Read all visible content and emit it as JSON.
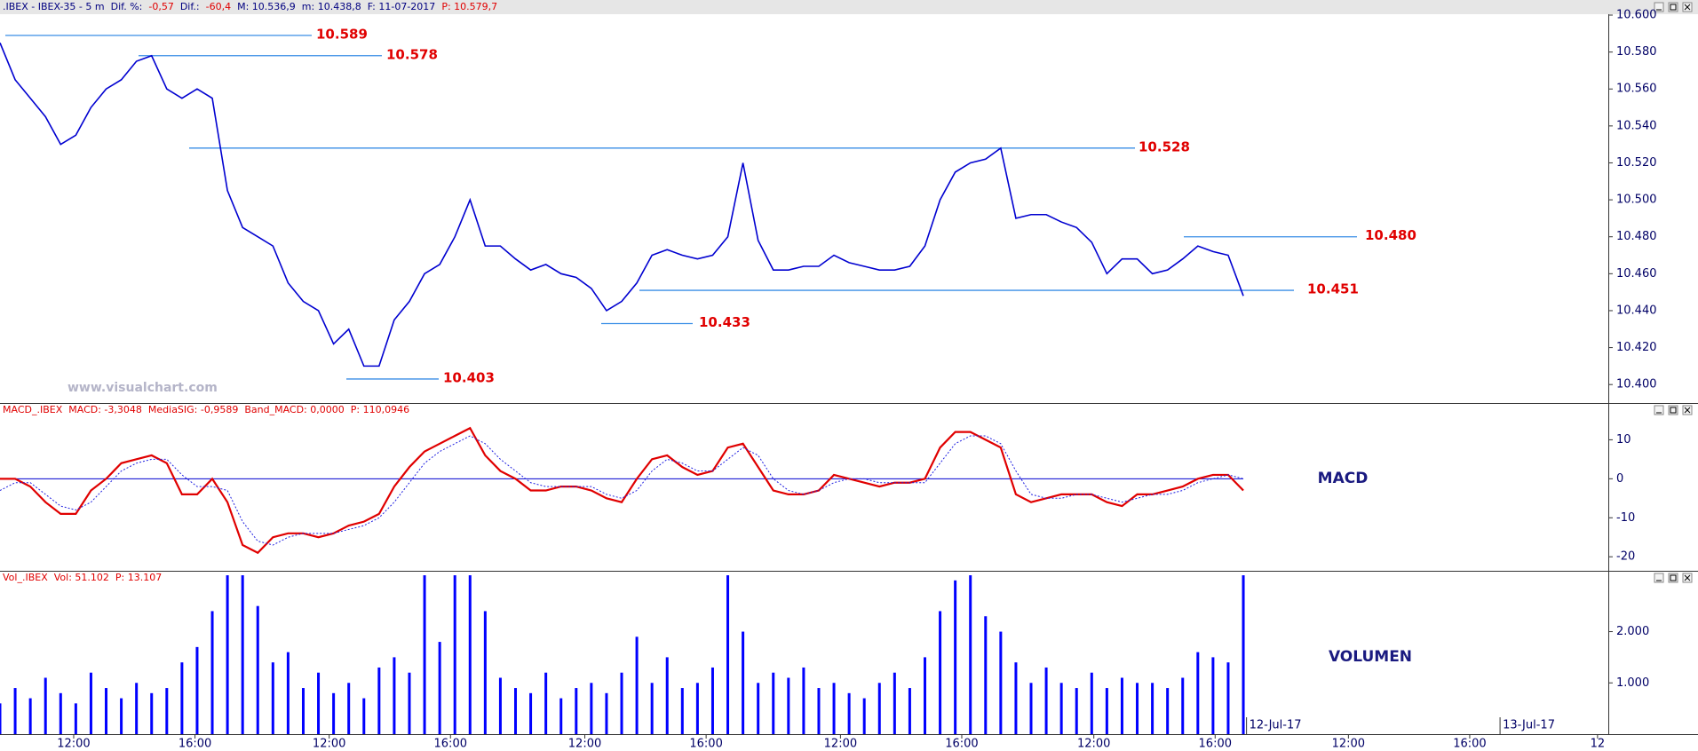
{
  "watermark": "www.visualchart.com",
  "chart_data": [
    {
      "type": "line",
      "header": [
        {
          "text": ".IBEX - IBEX-35 - 5 m",
          "color": "#000080"
        },
        {
          "text": "Dif. %:",
          "color": "#000080"
        },
        {
          "text": "-0,57",
          "color": "#e00000"
        },
        {
          "text": "Dif.:",
          "color": "#000080"
        },
        {
          "text": "-60,4",
          "color": "#e00000"
        },
        {
          "text": "M: 10.536,9",
          "color": "#000080"
        },
        {
          "text": "m: 10.438,8",
          "color": "#000080"
        },
        {
          "text": "F: 11-07-2017",
          "color": "#000080"
        },
        {
          "text": "P: 10.579,7",
          "color": "#e00000"
        }
      ],
      "x": [
        0,
        1,
        2,
        3,
        4,
        5,
        6,
        7,
        8,
        9,
        10,
        11,
        12,
        13,
        14,
        15,
        16,
        17,
        18,
        19,
        20,
        21,
        22,
        23,
        24,
        25,
        26,
        27,
        28,
        29,
        30,
        31,
        32,
        33,
        34,
        35,
        36,
        37,
        38,
        39,
        40,
        41,
        42,
        43,
        44,
        45,
        46,
        47,
        48,
        49,
        50,
        51,
        52,
        53,
        54,
        55,
        56,
        57,
        58,
        59,
        60,
        61,
        62,
        63,
        64,
        65,
        66,
        67,
        68,
        69,
        70,
        71,
        72,
        73,
        74,
        75,
        76,
        77,
        78,
        79,
        80,
        81,
        82
      ],
      "values": [
        10.585,
        10.565,
        10.555,
        10.545,
        10.53,
        10.535,
        10.55,
        10.56,
        10.565,
        10.575,
        10.578,
        10.56,
        10.555,
        10.56,
        10.555,
        10.505,
        10.485,
        10.48,
        10.475,
        10.455,
        10.445,
        10.44,
        10.422,
        10.43,
        10.41,
        10.41,
        10.435,
        10.445,
        10.46,
        10.465,
        10.48,
        10.5,
        10.475,
        10.475,
        10.468,
        10.462,
        10.465,
        10.46,
        10.458,
        10.452,
        10.44,
        10.445,
        10.455,
        10.47,
        10.473,
        10.47,
        10.468,
        10.47,
        10.48,
        10.52,
        10.478,
        10.462,
        10.462,
        10.464,
        10.464,
        10.47,
        10.466,
        10.464,
        10.462,
        10.462,
        10.464,
        10.475,
        10.5,
        10.515,
        10.52,
        10.522,
        10.528,
        10.49,
        10.492,
        10.492,
        10.488,
        10.485,
        10.477,
        10.46,
        10.468,
        10.468,
        10.46,
        10.462,
        10.468,
        10.475,
        10.472,
        10.47,
        10.448
      ],
      "color": "#0000d0",
      "xlim": [
        0,
        106.07
      ],
      "ylim": [
        10.39,
        10.6
      ],
      "yticks": [
        {
          "value": 10.4,
          "label": "10.400"
        },
        {
          "value": 10.42,
          "label": "10.420"
        },
        {
          "value": 10.44,
          "label": "10.440"
        },
        {
          "value": 10.46,
          "label": "10.460"
        },
        {
          "value": 10.48,
          "label": "10.480"
        },
        {
          "value": 10.5,
          "label": "10.500"
        },
        {
          "value": 10.52,
          "label": "10.520"
        },
        {
          "value": 10.54,
          "label": "10.540"
        },
        {
          "value": 10.56,
          "label": "10.560"
        },
        {
          "value": 10.58,
          "label": "10.580"
        },
        {
          "value": 10.6,
          "label": "10.600"
        }
      ],
      "levels": [
        {
          "value": 10.589,
          "label": "10.589"
        },
        {
          "value": 10.578,
          "label": "10.578"
        },
        {
          "value": 10.528,
          "label": "10.528"
        },
        {
          "value": 10.48,
          "label": "10.480"
        },
        {
          "value": 10.451,
          "label": "10.451"
        },
        {
          "value": 10.433,
          "label": "10.433"
        },
        {
          "value": 10.403,
          "label": "10.403"
        }
      ],
      "level_color": "#3a8ee6"
    },
    {
      "type": "line",
      "label": "MACD",
      "header": [
        {
          "text": "MACD_.IBEX",
          "color": "#e00000"
        },
        {
          "text": "MACD: -3,3048",
          "color": "#e00000"
        },
        {
          "text": "MediaSIG: -0,9589",
          "color": "#e00000"
        },
        {
          "text": "Band_MACD: 0,0000",
          "color": "#e00000"
        },
        {
          "text": "P: 110,0946",
          "color": "#e00000"
        }
      ],
      "band": 0,
      "band_color": "#0000d0",
      "series": [
        {
          "color": "#e00000",
          "values": [
            0,
            0,
            -2,
            -6,
            -9,
            -9,
            -3,
            0,
            4,
            5,
            6,
            4,
            -4,
            -4,
            0,
            -6,
            -17,
            -19,
            -15,
            -14,
            -14,
            -15,
            -14,
            -12,
            -11,
            -9,
            -2,
            3,
            7,
            9,
            11,
            13,
            6,
            2,
            0,
            -3,
            -3,
            -2,
            -2,
            -3,
            -5,
            -6,
            0,
            5,
            6,
            3,
            1,
            2,
            8,
            9,
            3,
            -3,
            -4,
            -4,
            -3,
            1,
            0,
            -1,
            -2,
            -1,
            -1,
            0,
            8,
            12,
            12,
            10,
            8,
            -4,
            -6,
            -5,
            -4,
            -4,
            -4,
            -6,
            -7,
            -4,
            -4,
            -3,
            -2,
            0,
            1,
            1,
            -3
          ]
        },
        {
          "color": "#2020e0",
          "dashed": true,
          "values": [
            -3,
            -1,
            -1,
            -4,
            -7,
            -8,
            -6,
            -2,
            2,
            4,
            5,
            5,
            1,
            -2,
            -2,
            -3,
            -11,
            -16,
            -17,
            -15,
            -14,
            -14,
            -14,
            -13,
            -12,
            -10,
            -6,
            -1,
            4,
            7,
            9,
            11,
            9,
            5,
            2,
            -1,
            -2,
            -2,
            -2,
            -2,
            -4,
            -5,
            -3,
            2,
            5,
            4,
            2,
            2,
            5,
            8,
            6,
            0,
            -3,
            -4,
            -3,
            -1,
            0,
            0,
            -1,
            -1,
            -1,
            -1,
            4,
            9,
            11,
            11,
            9,
            2,
            -4,
            -5,
            -5,
            -4,
            -4,
            -5,
            -6,
            -5,
            -4,
            -4,
            -3,
            -1,
            0,
            1,
            0
          ]
        }
      ],
      "xlim": [
        0,
        106.07
      ],
      "ylim": [
        -23.6,
        19.2
      ],
      "yticks": [
        -20,
        -10,
        0,
        10
      ]
    },
    {
      "type": "bar",
      "label": "VOLUMEN",
      "header": [
        {
          "text": "Vol_.IBEX",
          "color": "#e00000"
        },
        {
          "text": "Vol: 51.102",
          "color": "#e00000"
        },
        {
          "text": "P: 13.107",
          "color": "#e00000"
        }
      ],
      "values": [
        600,
        900,
        700,
        1100,
        800,
        600,
        1200,
        900,
        700,
        1000,
        800,
        900,
        1400,
        1700,
        2400,
        3100,
        3100,
        2500,
        1400,
        1600,
        900,
        1200,
        800,
        1000,
        700,
        1300,
        1500,
        1200,
        3100,
        1800,
        3100,
        3100,
        2400,
        1100,
        900,
        800,
        1200,
        700,
        900,
        1000,
        800,
        1200,
        1900,
        1000,
        1500,
        900,
        1000,
        1300,
        3100,
        2000,
        1000,
        1200,
        1100,
        1300,
        900,
        1000,
        800,
        700,
        1000,
        1200,
        900,
        1500,
        2400,
        3000,
        3100,
        2300,
        2000,
        1400,
        1000,
        1300,
        1000,
        900,
        1200,
        900,
        1100,
        1000,
        1000,
        900,
        1100,
        1600,
        1500,
        1400,
        3100
      ],
      "color": "#0000ff",
      "xlim": [
        0,
        106.07
      ],
      "ylim": [
        0,
        3170
      ],
      "yticks": [
        {
          "value": 1000,
          "label": "1.000"
        },
        {
          "value": 2000,
          "label": "2.000"
        }
      ],
      "xticks": [
        {
          "value": 4.86,
          "label": "12:00"
        },
        {
          "value": 12.86,
          "label": "16:00"
        },
        {
          "value": 21.71,
          "label": "12:00"
        },
        {
          "value": 29.71,
          "label": "16:00"
        },
        {
          "value": 38.57,
          "label": "12:00"
        },
        {
          "value": 46.57,
          "label": "16:00"
        },
        {
          "value": 55.43,
          "label": "12:00"
        },
        {
          "value": 63.43,
          "label": "16:00"
        },
        {
          "value": 72.14,
          "label": "12:00"
        },
        {
          "value": 80.14,
          "label": "16:00"
        },
        {
          "value": 82.21,
          "label": "12-Jul-17"
        },
        {
          "value": 88.93,
          "label": "12:00"
        },
        {
          "value": 96.93,
          "label": "16:00"
        },
        {
          "value": 98.93,
          "label": "13-Jul-17"
        },
        {
          "value": 105.36,
          "label": "12"
        }
      ]
    }
  ]
}
